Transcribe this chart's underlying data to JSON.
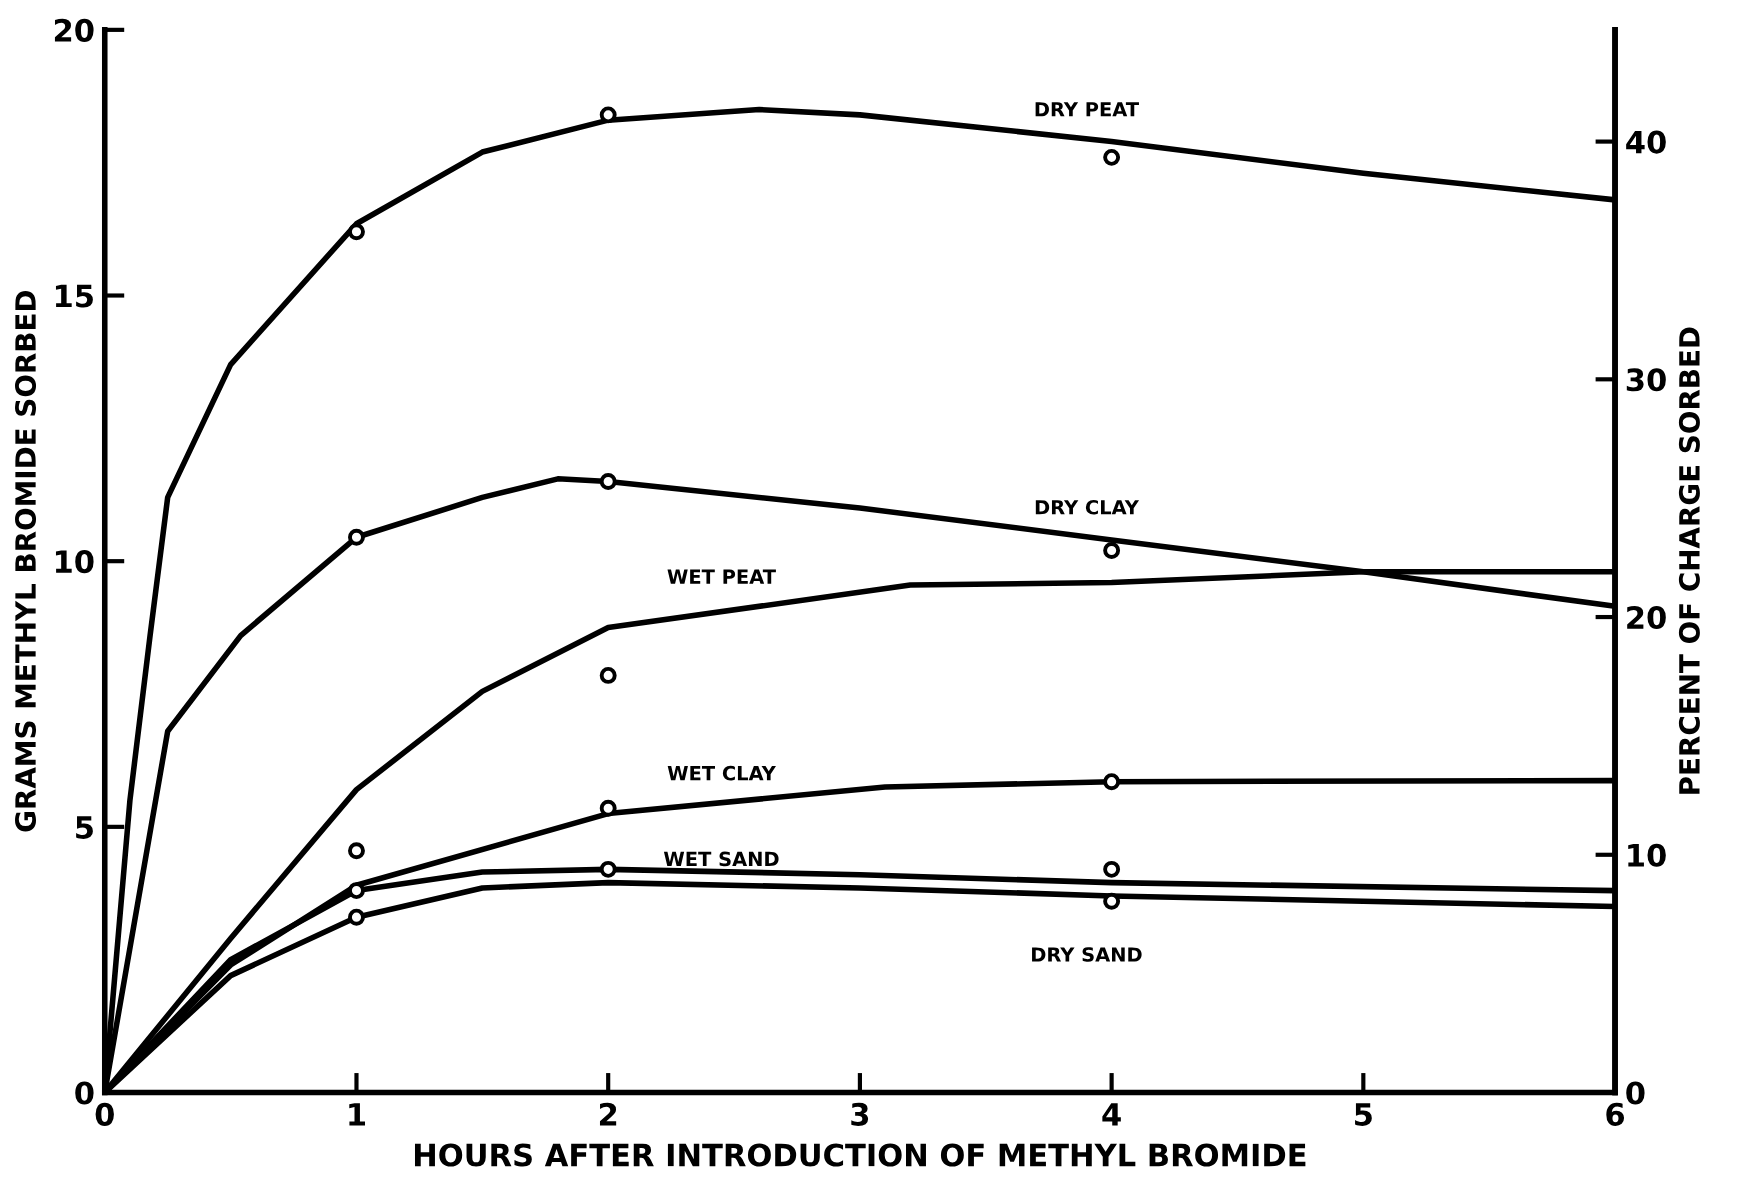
{
  "chart_data": {
    "type": "line",
    "xlabel": "HOURS AFTER INTRODUCTION OF METHYL BROMIDE",
    "ylabel": "GRAMS METHYL BROMIDE SORBED",
    "y2label": "PERCENT OF CHARGE SORBED",
    "xlim": [
      0,
      6
    ],
    "xticks": [
      0,
      1,
      2,
      3,
      4,
      5,
      6
    ],
    "ylim": [
      0,
      20
    ],
    "yticks": [
      0,
      5,
      10,
      15,
      20
    ],
    "y2lim": [
      0,
      44.7
    ],
    "y2ticks": [
      0,
      10,
      20,
      30,
      40
    ],
    "grid": false,
    "legend": false,
    "line_style": "solid",
    "marker": "none",
    "series": [
      {
        "name": "DRY PEAT",
        "color": "#000000",
        "x": [
          0,
          0.1,
          0.18,
          0.25,
          0.5,
          1,
          1.5,
          2,
          2.6,
          3,
          4,
          5,
          6
        ],
        "values": [
          0,
          5.5,
          8.6,
          11.2,
          13.7,
          16.35,
          17.7,
          18.3,
          18.5,
          18.4,
          17.9,
          17.3,
          16.8
        ]
      },
      {
        "name": "DRY CLAY",
        "color": "#000000",
        "x": [
          0,
          0.25,
          0.54,
          1,
          1.5,
          1.8,
          2,
          3,
          4,
          5,
          6
        ],
        "values": [
          0,
          6.8,
          8.6,
          10.45,
          11.2,
          11.55,
          11.5,
          11.0,
          10.4,
          9.8,
          9.15
        ]
      },
      {
        "name": "WET PEAT",
        "color": "#000000",
        "x": [
          0,
          0.5,
          1,
          1.5,
          2,
          3.2,
          4,
          5,
          6
        ],
        "values": [
          0,
          2.9,
          5.7,
          7.55,
          8.75,
          9.55,
          9.6,
          9.8,
          9.8
        ]
      },
      {
        "name": "WET CLAY",
        "color": "#000000",
        "x": [
          0,
          0.5,
          1,
          2,
          3.1,
          4,
          6
        ],
        "values": [
          0,
          2.4,
          3.9,
          5.25,
          5.75,
          5.85,
          5.87
        ]
      },
      {
        "name": "WET SAND",
        "color": "#000000",
        "x": [
          0,
          0.5,
          1,
          1.5,
          2,
          3,
          4,
          6
        ],
        "values": [
          0,
          2.5,
          3.8,
          4.15,
          4.2,
          4.1,
          3.95,
          3.8
        ]
      },
      {
        "name": "DRY SAND",
        "color": "#000000",
        "x": [
          0,
          0.5,
          1,
          1.5,
          2,
          3,
          4,
          6
        ],
        "values": [
          0,
          2.2,
          3.3,
          3.85,
          3.95,
          3.85,
          3.7,
          3.5
        ]
      },
      {
        "type": "scatter",
        "marker": "circle",
        "color": "#000000",
        "x": [
          1,
          2,
          4
        ],
        "values": [
          16.2,
          18.4,
          17.6
        ]
      },
      {
        "type": "scatter",
        "marker": "circle",
        "color": "#000000",
        "x": [
          1,
          2,
          4
        ],
        "values": [
          10.45,
          11.5,
          10.2
        ]
      },
      {
        "type": "scatter",
        "marker": "circle",
        "color": "#000000",
        "x": [
          2
        ],
        "values": [
          7.85
        ]
      },
      {
        "type": "scatter",
        "marker": "circle",
        "color": "#000000",
        "x": [
          1,
          2,
          4
        ],
        "values": [
          4.55,
          5.35,
          5.85
        ]
      },
      {
        "type": "scatter",
        "marker": "circle",
        "color": "#000000",
        "x": [
          1,
          2,
          4
        ],
        "values": [
          3.8,
          4.2,
          4.2
        ]
      },
      {
        "type": "scatter",
        "marker": "circle",
        "color": "#000000",
        "x": [
          1,
          4
        ],
        "values": [
          3.3,
          3.6
        ]
      }
    ]
  }
}
